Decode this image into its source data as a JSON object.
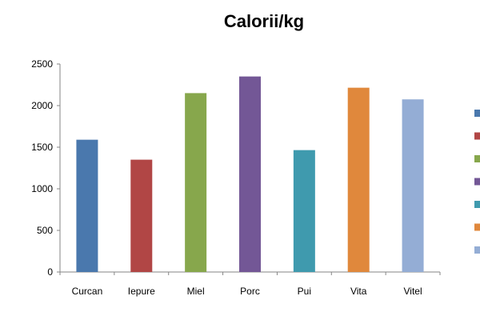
{
  "chart_data": {
    "type": "bar",
    "title": "Calorii/kg",
    "xlabel": "",
    "ylabel": "",
    "categories": [
      "Curcan",
      "Iepure",
      "Miel",
      "Porc",
      "Pui",
      "Vita",
      "Vitel"
    ],
    "values": [
      1590,
      1350,
      2150,
      2350,
      1465,
      2215,
      2075
    ],
    "colors": [
      "#4a78ad",
      "#b14645",
      "#87a74c",
      "#735796",
      "#3f9aae",
      "#e0883c",
      "#94add5"
    ],
    "ylim": [
      0,
      2500
    ],
    "yticks": [
      0,
      500,
      1000,
      1500,
      2000,
      2500
    ],
    "grid": false,
    "legend": {
      "position": "right",
      "entries": [
        "",
        "",
        "",
        "",
        "",
        "",
        ""
      ]
    }
  }
}
